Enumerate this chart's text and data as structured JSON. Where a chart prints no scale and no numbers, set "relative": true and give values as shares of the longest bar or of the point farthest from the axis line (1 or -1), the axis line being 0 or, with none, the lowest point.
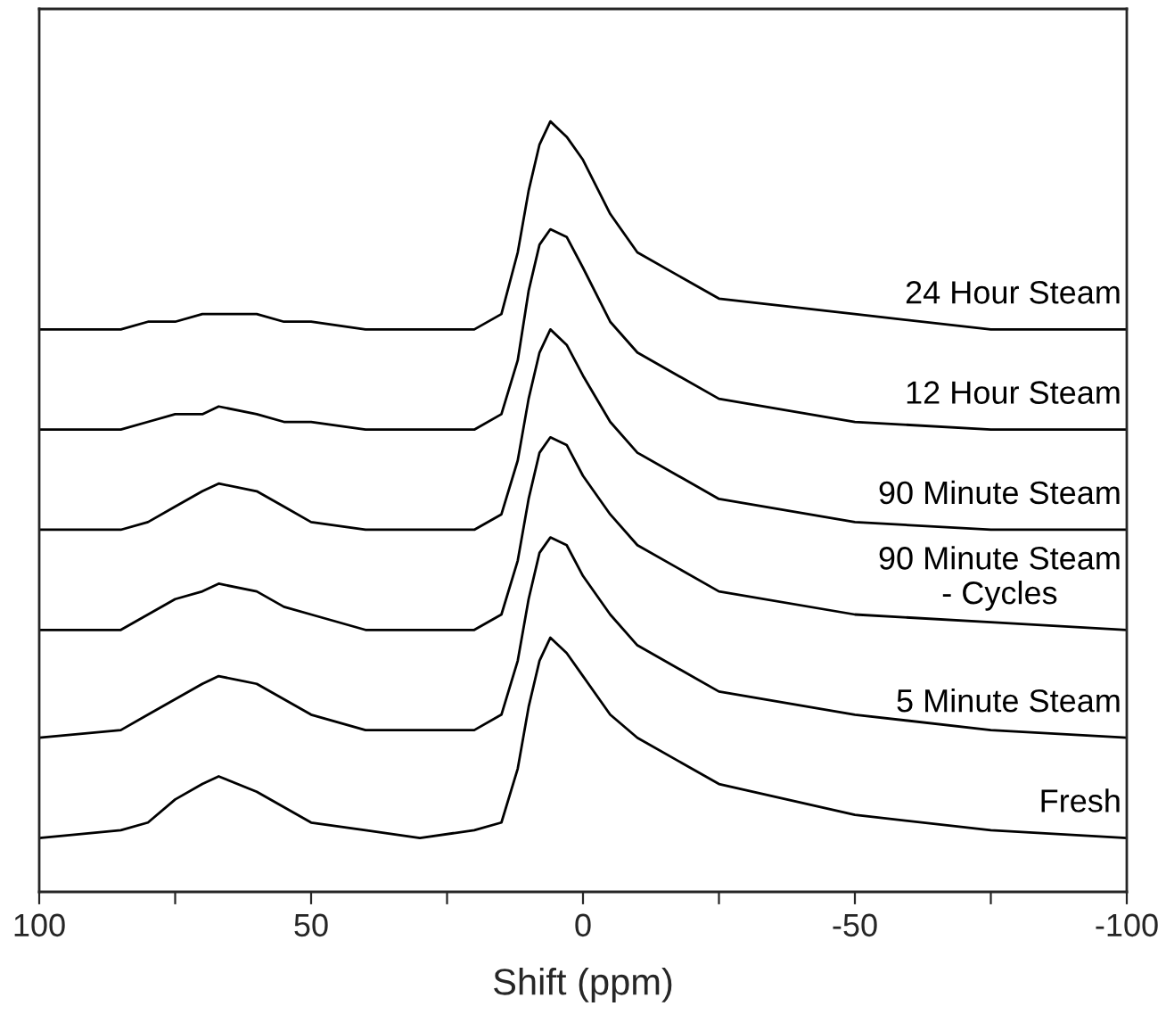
{
  "chart_data": {
    "type": "line",
    "relative": true,
    "xlabel": "Shift (ppm)",
    "xlim": [
      100,
      -100
    ],
    "xticks": [
      100,
      {
        "value": 75,
        "label": null
      },
      50,
      {
        "value": 25,
        "label": null
      },
      0,
      {
        "value": -25,
        "label": null
      },
      -50,
      {
        "value": -75,
        "label": null
      },
      -100
    ],
    "x": [
      100,
      85,
      80,
      75,
      70,
      67,
      60,
      55,
      50,
      40,
      30,
      20,
      15,
      12,
      10,
      8,
      6,
      3,
      0,
      -5,
      -10,
      -25,
      -50,
      -75,
      -100
    ],
    "grid": false,
    "legend": false,
    "marker": "none",
    "line_style": "solid",
    "series": [
      {
        "name": "Fresh",
        "color": "#000000",
        "values": [
          0.07,
          0.08,
          0.09,
          0.12,
          0.14,
          0.15,
          0.13,
          0.11,
          0.09,
          0.08,
          0.07,
          0.08,
          0.09,
          0.16,
          0.24,
          0.3,
          0.33,
          0.31,
          0.28,
          0.23,
          0.2,
          0.14,
          0.1,
          0.08,
          0.07
        ]
      },
      {
        "name": "5 Minute Steam",
        "color": "#000000",
        "values": [
          0.2,
          0.21,
          0.23,
          0.25,
          0.27,
          0.28,
          0.27,
          0.25,
          0.23,
          0.21,
          0.21,
          0.21,
          0.23,
          0.3,
          0.38,
          0.44,
          0.46,
          0.45,
          0.41,
          0.36,
          0.32,
          0.26,
          0.23,
          0.21,
          0.2
        ]
      },
      {
        "name": "90 Minute Steam\n- Cycles",
        "color": "#000000",
        "values": [
          0.34,
          0.34,
          0.36,
          0.38,
          0.39,
          0.4,
          0.39,
          0.37,
          0.36,
          0.34,
          0.34,
          0.34,
          0.36,
          0.43,
          0.51,
          0.57,
          0.59,
          0.58,
          0.54,
          0.49,
          0.45,
          0.39,
          0.36,
          0.35,
          0.34
        ]
      },
      {
        "name": "90 Minute Steam",
        "color": "#000000",
        "values": [
          0.47,
          0.47,
          0.48,
          0.5,
          0.52,
          0.53,
          0.52,
          0.5,
          0.48,
          0.47,
          0.47,
          0.47,
          0.49,
          0.56,
          0.64,
          0.7,
          0.73,
          0.71,
          0.67,
          0.61,
          0.57,
          0.51,
          0.48,
          0.47,
          0.47
        ]
      },
      {
        "name": "12 Hour Steam",
        "color": "#000000",
        "values": [
          0.6,
          0.6,
          0.61,
          0.62,
          0.62,
          0.63,
          0.62,
          0.61,
          0.61,
          0.6,
          0.6,
          0.6,
          0.62,
          0.69,
          0.78,
          0.84,
          0.86,
          0.85,
          0.81,
          0.74,
          0.7,
          0.64,
          0.61,
          0.6,
          0.6
        ]
      },
      {
        "name": "24 Hour Steam",
        "color": "#000000",
        "values": [
          0.73,
          0.73,
          0.74,
          0.74,
          0.75,
          0.75,
          0.75,
          0.74,
          0.74,
          0.73,
          0.73,
          0.73,
          0.75,
          0.83,
          0.91,
          0.97,
          1,
          0.98,
          0.95,
          0.88,
          0.83,
          0.77,
          0.75,
          0.73,
          0.73
        ]
      }
    ]
  }
}
